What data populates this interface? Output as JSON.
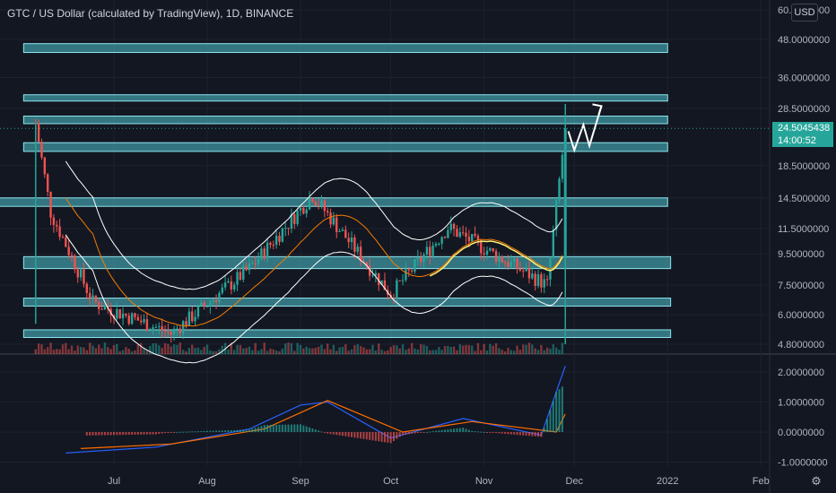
{
  "header": {
    "title": "GTC / US Dollar (calculated by TradingView), 1D, BINANCE",
    "currency": "USD"
  },
  "price_tag": {
    "price": "24.5045438",
    "countdown": "14:00:52"
  },
  "colors": {
    "background": "#131722",
    "zone_fill": "#4fc3cd",
    "up": "#26a69a",
    "down": "#ef5350",
    "bollinger": "#ffffff",
    "ma": "#f57c00",
    "yellow_line": "#fff176",
    "macd": "#2962ff",
    "signal": "#ff6d00"
  },
  "icons": {
    "settings": "gear-icon"
  },
  "chart_data": [
    {
      "type": "candlestick",
      "title": "GTC / US Dollar (calculated by TradingView), 1D, BINANCE",
      "y_scale": "log",
      "yticks": [
        "60.0000000",
        "48.0000000",
        "36.0000000",
        "28.5000000",
        "18.5000000",
        "14.5000000",
        "11.5000000",
        "9.5000000",
        "7.5000000",
        "6.0000000",
        "4.8000000"
      ],
      "xticks": [
        "Jul",
        "Aug",
        "Sep",
        "Oct",
        "Nov",
        "Dec",
        "2022",
        "Feb"
      ],
      "current_price": 24.5045438,
      "horizontal_zones": [
        {
          "from": "2021-06-01",
          "to": "2022-01-01",
          "low": 43.5,
          "high": 46.5
        },
        {
          "from": "2021-06-01",
          "to": "2022-01-01",
          "low": 30.2,
          "high": 31.6
        },
        {
          "from": "2021-06-01",
          "to": "2022-01-01",
          "low": 25.4,
          "high": 26.9
        },
        {
          "from": "2021-06-01",
          "to": "2022-01-01",
          "low": 20.6,
          "high": 22.0
        },
        {
          "from": "2021-05-20",
          "to": "2022-01-01",
          "low": 13.6,
          "high": 14.5
        },
        {
          "from": "2021-06-01",
          "to": "2022-01-02",
          "low": 8.5,
          "high": 9.3
        },
        {
          "from": "2021-06-01",
          "to": "2022-01-02",
          "low": 6.4,
          "high": 6.8
        },
        {
          "from": "2021-06-01",
          "to": "2022-01-02",
          "low": 5.05,
          "high": 5.35
        }
      ],
      "key_points": [
        {
          "date": "2021-06-05",
          "high": 25.5,
          "low": 5.6
        },
        {
          "date": "2021-06-10",
          "close": 13.0
        },
        {
          "date": "2021-06-24",
          "close": 6.6
        },
        {
          "date": "2021-07-20",
          "close": 5.2
        },
        {
          "date": "2021-08-15",
          "close": 8.5
        },
        {
          "date": "2021-09-05",
          "close": 14.8
        },
        {
          "date": "2021-10-01",
          "close": 7.0
        },
        {
          "date": "2021-10-20",
          "close": 11.6
        },
        {
          "date": "2021-11-22",
          "close": 7.5
        },
        {
          "date": "2021-11-28",
          "close": 24.5
        }
      ],
      "projection": [
        {
          "date": "2021-11-29",
          "value": 24.0
        },
        {
          "date": "2021-12-01",
          "value": 20.8
        },
        {
          "date": "2021-12-04",
          "value": 25.2
        },
        {
          "date": "2021-12-06",
          "value": 21.5
        },
        {
          "date": "2021-12-10",
          "value": 29.0
        }
      ]
    },
    {
      "type": "line",
      "name": "MACD",
      "yticks": [
        "2.0000000",
        "1.0000000",
        "0.0000000",
        "-1.0000000"
      ],
      "series": [
        {
          "name": "macd",
          "points": [
            [
              "2021-06-15",
              -0.7
            ],
            [
              "2021-07-15",
              -0.5
            ],
            [
              "2021-08-15",
              0.1
            ],
            [
              "2021-09-01",
              0.9
            ],
            [
              "2021-09-10",
              1.0
            ],
            [
              "2021-10-01",
              -0.2
            ],
            [
              "2021-10-25",
              0.45
            ],
            [
              "2021-11-20",
              -0.1
            ],
            [
              "2021-11-28",
              2.2
            ]
          ]
        },
        {
          "name": "signal",
          "points": [
            [
              "2021-06-20",
              -0.55
            ],
            [
              "2021-07-20",
              -0.4
            ],
            [
              "2021-08-20",
              0.1
            ],
            [
              "2021-09-10",
              1.05
            ],
            [
              "2021-10-05",
              0.0
            ],
            [
              "2021-10-28",
              0.35
            ],
            [
              "2021-11-25",
              0.0
            ],
            [
              "2021-11-28",
              0.6
            ]
          ]
        }
      ]
    }
  ]
}
